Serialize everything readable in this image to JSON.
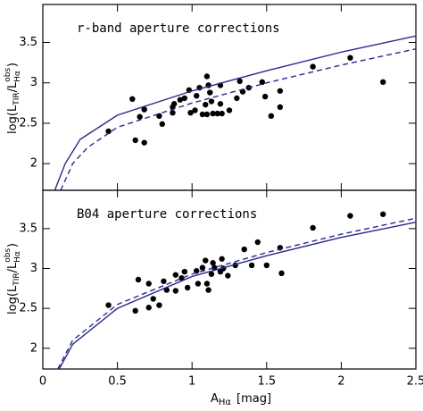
{
  "chart_data": [
    {
      "type": "scatter",
      "title": "r-band aperture corrections",
      "ylabel": [
        "log(L",
        "TIR",
        "/L",
        "obs",
        "Hα",
        ")"
      ],
      "xlim": [
        0,
        2.5
      ],
      "ylim": [
        1.67,
        3.97
      ],
      "yticks": [
        2,
        2.5,
        3,
        3.5
      ],
      "series": [
        {
          "style": "points",
          "color": "#000000",
          "x": [
            0.44,
            0.6,
            0.62,
            0.65,
            0.68,
            0.68,
            0.78,
            0.8,
            0.87,
            0.87,
            0.88,
            0.92,
            0.95,
            0.98,
            0.99,
            1.02,
            1.03,
            1.05,
            1.07,
            1.09,
            1.1,
            1.1,
            1.11,
            1.12,
            1.13,
            1.14,
            1.17,
            1.19,
            1.19,
            1.2,
            1.25,
            1.3,
            1.32,
            1.34,
            1.38,
            1.47,
            1.49,
            1.53,
            1.59,
            1.59,
            1.81,
            2.06,
            2.28
          ],
          "values": [
            2.4,
            2.8,
            2.29,
            2.58,
            2.67,
            2.26,
            2.59,
            2.49,
            2.63,
            2.7,
            2.74,
            2.79,
            2.81,
            2.91,
            2.63,
            2.66,
            2.84,
            2.94,
            2.61,
            2.73,
            3.08,
            2.61,
            2.97,
            2.88,
            2.77,
            2.62,
            2.62,
            2.74,
            2.97,
            2.62,
            2.66,
            2.81,
            3.02,
            2.89,
            2.94,
            3.01,
            2.83,
            2.59,
            2.9,
            2.7,
            3.2,
            3.31,
            3.01
          ]
        },
        {
          "style": "solid",
          "color": "#2a2a8c",
          "x": [
            0.08,
            0.15,
            0.25,
            0.5,
            1.0,
            1.5,
            2.0,
            2.5
          ],
          "values": [
            1.67,
            2.0,
            2.3,
            2.6,
            2.9,
            3.15,
            3.38,
            3.58
          ]
        },
        {
          "style": "dashed",
          "color": "#2a2a8c",
          "x": [
            0.12,
            0.2,
            0.3,
            0.5,
            1.0,
            1.5,
            2.0,
            2.5
          ],
          "values": [
            1.67,
            2.0,
            2.2,
            2.45,
            2.75,
            3.0,
            3.22,
            3.42
          ]
        }
      ]
    },
    {
      "type": "scatter",
      "title": "B04 aperture corrections",
      "ylabel": [
        "log(L",
        "TIR",
        "/L",
        "obs",
        "Hα",
        ")"
      ],
      "xlabel": [
        "A",
        "Hα",
        "[mag]"
      ],
      "xlim": [
        0,
        2.5
      ],
      "ylim": [
        1.74,
        3.98
      ],
      "xticks": [
        0,
        0.5,
        1,
        1.5,
        2,
        2.5
      ],
      "yticks": [
        2,
        2.5,
        3,
        3.5
      ],
      "series": [
        {
          "style": "points",
          "color": "#000000",
          "x": [
            0.44,
            0.62,
            0.64,
            0.71,
            0.74,
            0.71,
            0.78,
            0.81,
            0.83,
            0.89,
            0.89,
            0.93,
            0.95,
            0.97,
            1.03,
            1.04,
            1.07,
            1.09,
            1.1,
            1.11,
            1.13,
            1.14,
            1.15,
            1.19,
            1.2,
            1.21,
            1.24,
            1.29,
            1.35,
            1.4,
            1.44,
            1.5,
            1.59,
            1.6,
            1.81,
            2.06,
            2.28
          ],
          "values": [
            2.54,
            2.47,
            2.86,
            2.81,
            2.62,
            2.51,
            2.54,
            2.84,
            2.73,
            2.72,
            2.92,
            2.88,
            2.96,
            2.76,
            2.97,
            2.81,
            3.01,
            3.1,
            2.81,
            2.73,
            2.93,
            3.07,
            3.01,
            2.96,
            3.12,
            3.0,
            2.91,
            3.04,
            3.24,
            3.04,
            3.33,
            3.04,
            3.26,
            2.94,
            3.51,
            3.66,
            3.68
          ]
        },
        {
          "style": "solid",
          "color": "#2a2a8c",
          "x": [
            0.11,
            0.2,
            0.5,
            1.0,
            1.5,
            2.0,
            2.5
          ],
          "values": [
            1.74,
            2.05,
            2.5,
            2.9,
            3.16,
            3.39,
            3.58
          ]
        },
        {
          "style": "dashed",
          "color": "#2a2a8c",
          "x": [
            0.1,
            0.2,
            0.5,
            1.0,
            1.5,
            2.0,
            2.5
          ],
          "values": [
            1.74,
            2.1,
            2.55,
            2.93,
            3.2,
            3.43,
            3.63
          ]
        }
      ]
    }
  ]
}
